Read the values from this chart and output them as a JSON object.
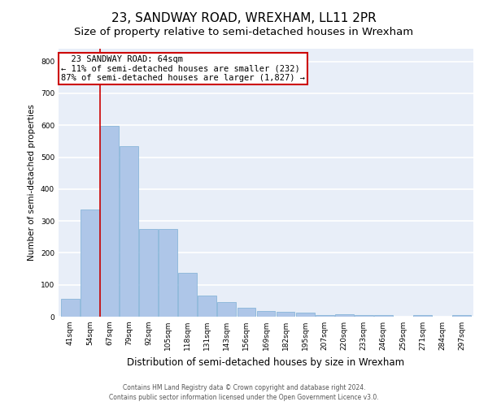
{
  "title": "23, SANDWAY ROAD, WREXHAM, LL11 2PR",
  "subtitle": "Size of property relative to semi-detached houses in Wrexham",
  "xlabel": "Distribution of semi-detached houses by size in Wrexham",
  "ylabel": "Number of semi-detached properties",
  "categories": [
    "41sqm",
    "54sqm",
    "67sqm",
    "79sqm",
    "92sqm",
    "105sqm",
    "118sqm",
    "131sqm",
    "143sqm",
    "156sqm",
    "169sqm",
    "182sqm",
    "195sqm",
    "207sqm",
    "220sqm",
    "233sqm",
    "246sqm",
    "259sqm",
    "271sqm",
    "284sqm",
    "297sqm"
  ],
  "values": [
    57,
    335,
    597,
    535,
    275,
    275,
    137,
    67,
    46,
    27,
    18,
    15,
    12,
    5,
    7,
    6,
    6,
    0,
    5,
    0,
    5
  ],
  "bar_color": "#aec6e8",
  "bar_edge_color": "#7bafd4",
  "property_label": "23 SANDWAY ROAD: 64sqm",
  "smaller_pct": "11%",
  "smaller_n": "232",
  "larger_pct": "87%",
  "larger_n": "1,827",
  "vline_x": 1.5,
  "annotation_box_fc": "#ffffff",
  "annotation_box_ec": "#cc0000",
  "footer_line1": "Contains HM Land Registry data © Crown copyright and database right 2024.",
  "footer_line2": "Contains public sector information licensed under the Open Government Licence v3.0.",
  "bg_color": "#e8eef8",
  "ylim": [
    0,
    840
  ],
  "grid_color": "#ffffff",
  "title_fontsize": 11,
  "subtitle_fontsize": 9.5,
  "ylabel_fontsize": 7.5,
  "xlabel_fontsize": 8.5,
  "tick_fontsize": 6.5,
  "annot_fontsize": 7.5,
  "footer_fontsize": 5.5
}
